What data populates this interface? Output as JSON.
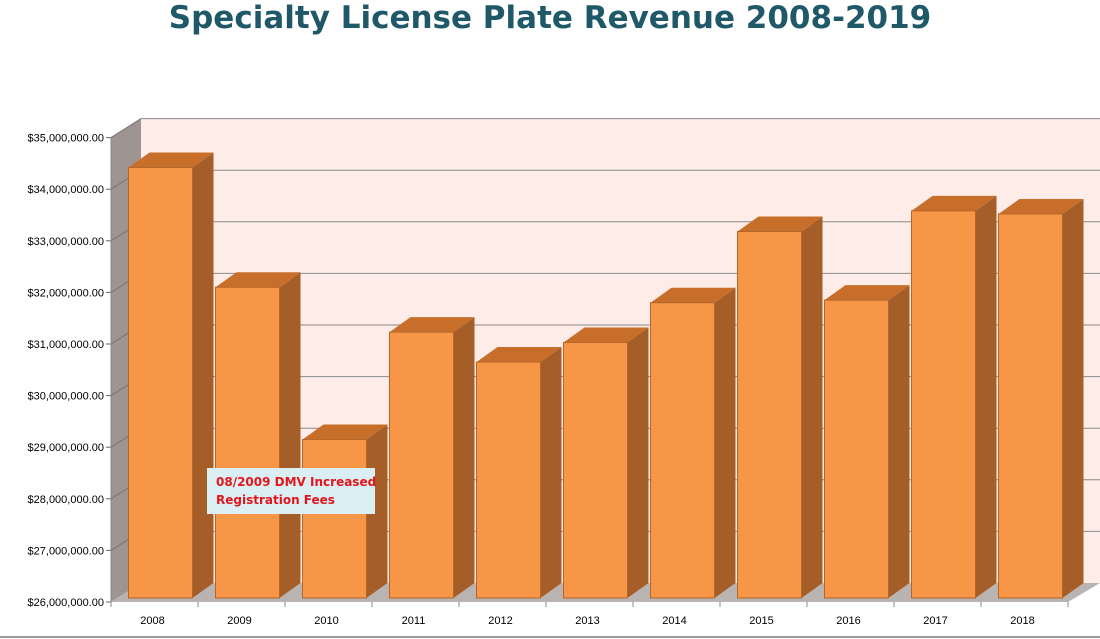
{
  "chart_data": {
    "type": "bar",
    "title": "Specialty License Plate Revenue 2008-2019",
    "xlabel": "",
    "ylabel": "",
    "categories": [
      "2008",
      "2009",
      "2010",
      "2011",
      "2012",
      "2013",
      "2014",
      "2015",
      "2016",
      "2017",
      "2018"
    ],
    "values": [
      34420000,
      32100000,
      29150000,
      31230000,
      30650000,
      31030000,
      31800000,
      33180000,
      31850000,
      33580000,
      33520000
    ],
    "ylim": [
      26000000,
      35000000
    ],
    "yticks": [
      "$26,000,000.00",
      "$27,000,000.00",
      "$28,000,000.00",
      "$29,000,000.00",
      "$30,000,000.00",
      "$31,000,000.00",
      "$32,000,000.00",
      "$33,000,000.00",
      "$34,000,000.00",
      "$35,000,000.00"
    ],
    "grid": true,
    "legend": "none",
    "annotation": {
      "lines": [
        "08/2009 DMV Increased",
        "Registration Fees"
      ]
    },
    "colors": {
      "bar_front": "#f79646",
      "bar_top": "#c76f2a",
      "bar_side": "#a55e28",
      "bar_edge": "#b5662a",
      "wall": "#fdece7",
      "side_wall": "#9e9592",
      "floor": "#b9b4b2",
      "title": "#1f5868",
      "annotation_text": "#e0161c",
      "annotation_bg": "#dbeef4"
    }
  }
}
